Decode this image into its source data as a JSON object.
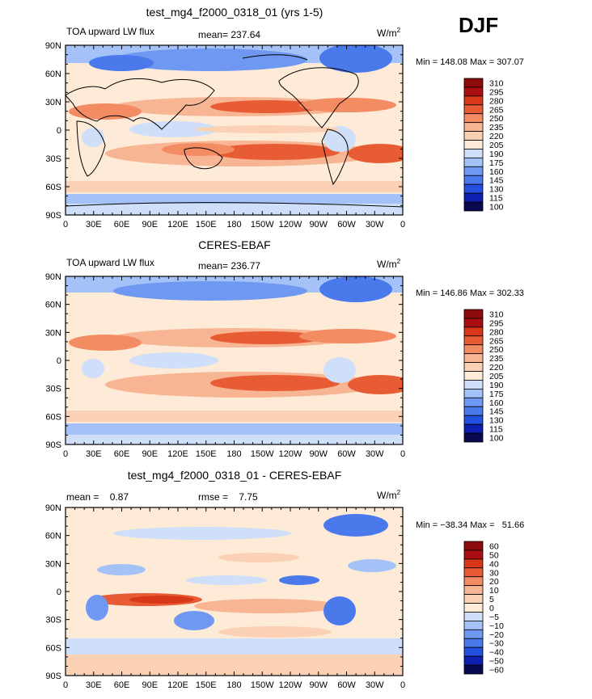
{
  "season": "DJF",
  "units_base": "W/m",
  "units_exp": "2",
  "x_ticks": [
    "0",
    "30E",
    "60E",
    "90E",
    "120E",
    "150E",
    "180",
    "150W",
    "120W",
    "90W",
    "60W",
    "30W",
    "0"
  ],
  "y_ticks": [
    "90N",
    "60N",
    "30N",
    "0",
    "30S",
    "60S",
    "90S"
  ],
  "colors": {
    "abs_scale": [
      "#08084f",
      "#0c1fb0",
      "#2450e0",
      "#4a79ec",
      "#6f98f2",
      "#a4c2f7",
      "#cfdff9",
      "#fdebd8",
      "#fbd1b5",
      "#f8b594",
      "#f38b63",
      "#e85c35",
      "#d9371a",
      "#a90f10",
      "#8c0b0b"
    ],
    "diff_scale": [
      "#08084f",
      "#0c1fb0",
      "#2450e0",
      "#4a79ec",
      "#6f98f2",
      "#a4c2f7",
      "#cfdff9",
      "#fdebd8",
      "#fbd1b5",
      "#f8b594",
      "#f38b63",
      "#e85c35",
      "#d9371a",
      "#a90f10",
      "#8c0b0b"
    ]
  },
  "chart_data": [
    {
      "type": "heatmap",
      "title": "test_mg4_f2000_0318_01 (yrs 1-5)",
      "variable": "TOA upward LW flux",
      "stat_text": "mean= 237.64",
      "minmax_text": "Min = 148.08 Max = 307.07",
      "xlabel": "",
      "ylabel": "",
      "legend_levels": [
        "310",
        "295",
        "280",
        "265",
        "250",
        "235",
        "220",
        "205",
        "190",
        "175",
        "160",
        "145",
        "130",
        "115",
        "100"
      ],
      "mean": 237.64,
      "min": 148.08,
      "max": 307.07
    },
    {
      "type": "heatmap",
      "title": "CERES-EBAF",
      "variable": "TOA upward LW flux",
      "stat_text": "mean= 236.77",
      "minmax_text": "Min = 146.86 Max = 302.33",
      "xlabel": "",
      "ylabel": "",
      "legend_levels": [
        "310",
        "295",
        "280",
        "265",
        "250",
        "235",
        "220",
        "205",
        "190",
        "175",
        "160",
        "145",
        "130",
        "115",
        "100"
      ],
      "mean": 236.77,
      "min": 146.86,
      "max": 302.33
    },
    {
      "type": "heatmap",
      "title": "test_mg4_f2000_0318_01 - CERES-EBAF",
      "variable": "",
      "stat_text": "mean =    0.87",
      "rmse_text": "rmse =    7.75",
      "minmax_text": "Min = −38.34 Max =   51.66",
      "xlabel": "",
      "ylabel": "",
      "legend_levels": [
        "60",
        "50",
        "40",
        "30",
        "20",
        "10",
        "5",
        "0",
        "−5",
        "−10",
        "−20",
        "−30",
        "−40",
        "−50",
        "−60"
      ],
      "mean": 0.87,
      "rmse": 7.75,
      "min": -38.34,
      "max": 51.66
    }
  ]
}
